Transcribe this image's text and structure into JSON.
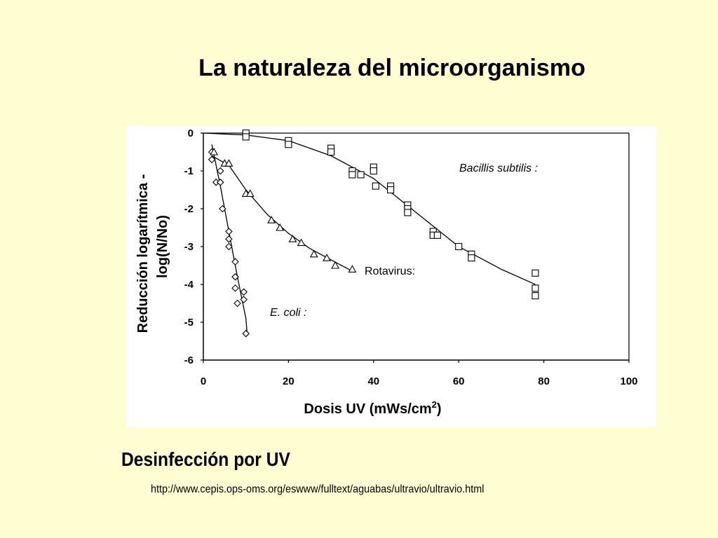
{
  "slide": {
    "title": "La naturaleza del microorganismo",
    "caption": "Desinfección por UV",
    "source_url": "http://www.cepis.ops-oms.org/eswww/fulltext/aguabas/ultravio/ultravio.html"
  },
  "colors": {
    "background": "#fffdd2",
    "figure_background": "#ffffff",
    "ink": "#000000"
  },
  "chart_data": {
    "type": "scatter",
    "title": "",
    "xlabel": "Dosis UV (mWs/cm",
    "xlabel_superscript": "2",
    "xlabel_suffix": ")",
    "ylabel_line1": "Reducción logarítmica -",
    "ylabel_line2": "log(N/No)",
    "xlim": [
      0,
      100
    ],
    "ylim": [
      -6,
      0
    ],
    "xticks": [
      0,
      20,
      40,
      60,
      80,
      100
    ],
    "yticks": [
      0,
      -1,
      -2,
      -3,
      -4,
      -5,
      -6
    ],
    "grid": false,
    "series": [
      {
        "name": "E. coli :",
        "marker": "diamond",
        "points": [
          [
            2,
            -0.5
          ],
          [
            2,
            -0.7
          ],
          [
            3,
            -1.3
          ],
          [
            4,
            -1.0
          ],
          [
            4,
            -1.3
          ],
          [
            4.5,
            -2.0
          ],
          [
            6,
            -2.6
          ],
          [
            6,
            -2.8
          ],
          [
            6,
            -3.0
          ],
          [
            7.5,
            -3.4
          ],
          [
            7.5,
            -3.8
          ],
          [
            7.5,
            -4.1
          ],
          [
            8,
            -4.5
          ],
          [
            9.5,
            -4.2
          ],
          [
            9.5,
            -4.4
          ],
          [
            10,
            -5.3
          ]
        ],
        "fit": [
          [
            2,
            -0.3
          ],
          [
            4,
            -1.4
          ],
          [
            6,
            -2.6
          ],
          [
            8,
            -3.8
          ],
          [
            10,
            -4.9
          ],
          [
            10.3,
            -5.3
          ]
        ]
      },
      {
        "name": "Rotavirus:",
        "marker": "triangle",
        "points": [
          [
            2.5,
            -0.5
          ],
          [
            5,
            -0.8
          ],
          [
            6,
            -0.8
          ],
          [
            10,
            -1.6
          ],
          [
            11,
            -1.6
          ],
          [
            16,
            -2.3
          ],
          [
            18,
            -2.5
          ],
          [
            21,
            -2.8
          ],
          [
            23,
            -2.9
          ],
          [
            26,
            -3.2
          ],
          [
            29,
            -3.3
          ],
          [
            31,
            -3.5
          ],
          [
            35,
            -3.6
          ]
        ],
        "fit": [
          [
            2,
            -0.6
          ],
          [
            6,
            -0.85
          ],
          [
            10,
            -1.5
          ],
          [
            15,
            -2.15
          ],
          [
            20,
            -2.65
          ],
          [
            25,
            -3.05
          ],
          [
            30,
            -3.35
          ],
          [
            35,
            -3.65
          ]
        ]
      },
      {
        "name": "Bacillis subtilis :",
        "marker": "square",
        "points": [
          [
            10,
            0
          ],
          [
            10,
            -0.1
          ],
          [
            20,
            -0.2
          ],
          [
            20,
            -0.3
          ],
          [
            30,
            -0.4
          ],
          [
            30,
            -0.5
          ],
          [
            35,
            -1.0
          ],
          [
            35,
            -1.1
          ],
          [
            37,
            -1.1
          ],
          [
            40,
            -0.9
          ],
          [
            40,
            -1.0
          ],
          [
            40.5,
            -1.4
          ],
          [
            44,
            -1.4
          ],
          [
            44,
            -1.5
          ],
          [
            48,
            -1.9
          ],
          [
            48,
            -2.0
          ],
          [
            48,
            -2.1
          ],
          [
            54,
            -2.6
          ],
          [
            54,
            -2.7
          ],
          [
            55,
            -2.7
          ],
          [
            60,
            -3.0
          ],
          [
            63,
            -3.2
          ],
          [
            63,
            -3.3
          ],
          [
            78,
            -3.7
          ],
          [
            78,
            -4.1
          ],
          [
            78,
            -4.3
          ]
        ],
        "fit": [
          [
            0,
            0
          ],
          [
            10,
            -0.05
          ],
          [
            20,
            -0.2
          ],
          [
            30,
            -0.6
          ],
          [
            40,
            -1.2
          ],
          [
            50,
            -2.1
          ],
          [
            60,
            -3.0
          ],
          [
            70,
            -3.6
          ],
          [
            78,
            -4.0
          ]
        ]
      }
    ]
  }
}
